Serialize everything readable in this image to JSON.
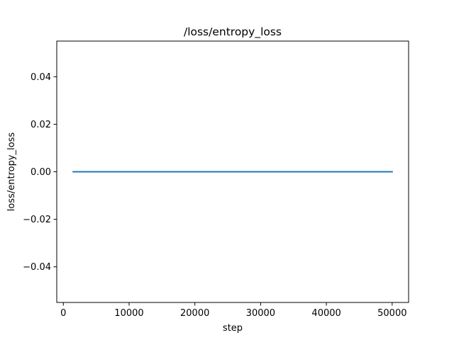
{
  "chart_data": {
    "type": "line",
    "title": "/loss/entropy_loss",
    "xlabel": "step",
    "ylabel": "loss/entropy_loss",
    "xlim": [
      -1000,
      52500
    ],
    "ylim": [
      -0.055,
      0.055
    ],
    "x_ticks": [
      0,
      10000,
      20000,
      30000,
      40000,
      50000
    ],
    "x_tick_labels": [
      "0",
      "10000",
      "20000",
      "30000",
      "40000",
      "50000"
    ],
    "y_ticks": [
      -0.04,
      -0.02,
      0.0,
      0.02,
      0.04
    ],
    "y_tick_labels": [
      "−0.04",
      "−0.02",
      "0.00",
      "0.02",
      "0.04"
    ],
    "grid": false,
    "series": [
      {
        "color": "#1f77b4",
        "x": [
          1500,
          5000,
          10000,
          15000,
          20000,
          25000,
          30000,
          35000,
          40000,
          45000,
          50000
        ],
        "y": [
          0,
          0,
          0,
          0,
          0,
          0,
          0,
          0,
          0,
          0,
          0
        ]
      }
    ]
  }
}
